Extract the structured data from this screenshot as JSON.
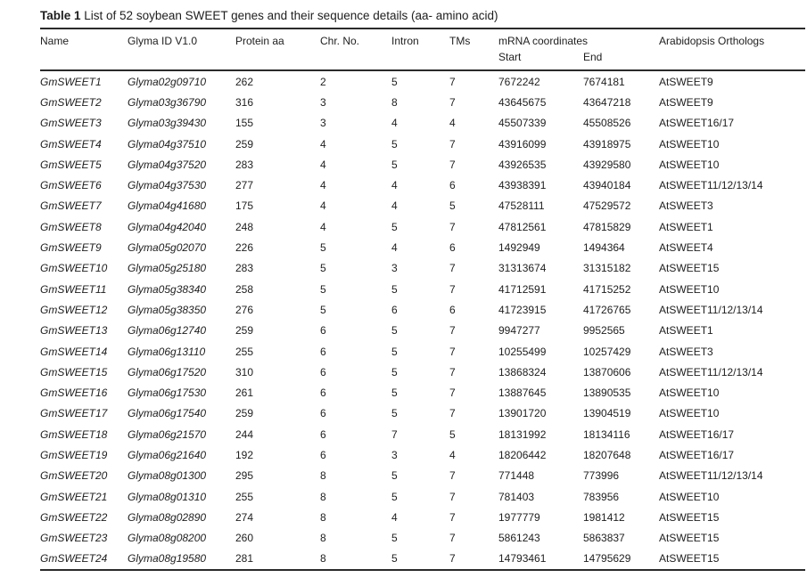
{
  "table": {
    "title_label": "Table 1",
    "title_text": " List of 52 soybean SWEET genes and their sequence details (aa- amino acid)",
    "headers": {
      "name": "Name",
      "glyma_id": "Glyma ID V1.0",
      "protein_aa": "Protein aa",
      "chr_no": "Chr. No.",
      "intron": "Intron",
      "tms": "TMs",
      "mrna": "mRNA coordinates",
      "start": "Start",
      "end": "End",
      "orthologs": "Arabidopsis Orthologs"
    },
    "column_keys": [
      "name",
      "glyma_id",
      "protein_aa",
      "chr_no",
      "intron",
      "tms",
      "start",
      "end",
      "orthologs"
    ],
    "rows": [
      [
        "GmSWEET1",
        "Glyma02g09710",
        "262",
        "2",
        "5",
        "7",
        "7672242",
        "7674181",
        "AtSWEET9"
      ],
      [
        "GmSWEET2",
        "Glyma03g36790",
        "316",
        "3",
        "8",
        "7",
        "43645675",
        "43647218",
        "AtSWEET9"
      ],
      [
        "GmSWEET3",
        "Glyma03g39430",
        "155",
        "3",
        "4",
        "4",
        "45507339",
        "45508526",
        "AtSWEET16/17"
      ],
      [
        "GmSWEET4",
        "Glyma04g37510",
        "259",
        "4",
        "5",
        "7",
        "43916099",
        "43918975",
        "AtSWEET10"
      ],
      [
        "GmSWEET5",
        "Glyma04g37520",
        "283",
        "4",
        "5",
        "7",
        "43926535",
        "43929580",
        "AtSWEET10"
      ],
      [
        "GmSWEET6",
        "Glyma04g37530",
        "277",
        "4",
        "4",
        "6",
        "43938391",
        "43940184",
        "AtSWEET11/12/13/14"
      ],
      [
        "GmSWEET7",
        "Glyma04g41680",
        "175",
        "4",
        "4",
        "5",
        "47528111",
        "47529572",
        "AtSWEET3"
      ],
      [
        "GmSWEET8",
        "Glyma04g42040",
        "248",
        "4",
        "5",
        "7",
        "47812561",
        "47815829",
        "AtSWEET1"
      ],
      [
        "GmSWEET9",
        "Glyma05g02070",
        "226",
        "5",
        "4",
        "6",
        "1492949",
        "1494364",
        "AtSWEET4"
      ],
      [
        "GmSWEET10",
        "Glyma05g25180",
        "283",
        "5",
        "3",
        "7",
        "31313674",
        "31315182",
        "AtSWEET15"
      ],
      [
        "GmSWEET11",
        "Glyma05g38340",
        "258",
        "5",
        "5",
        "7",
        "41712591",
        "41715252",
        "AtSWEET10"
      ],
      [
        "GmSWEET12",
        "Glyma05g38350",
        "276",
        "5",
        "6",
        "6",
        "41723915",
        "41726765",
        "AtSWEET11/12/13/14"
      ],
      [
        "GmSWEET13",
        "Glyma06g12740",
        "259",
        "6",
        "5",
        "7",
        "9947277",
        "9952565",
        "AtSWEET1"
      ],
      [
        "GmSWEET14",
        "Glyma06g13110",
        "255",
        "6",
        "5",
        "7",
        "10255499",
        "10257429",
        "AtSWEET3"
      ],
      [
        "GmSWEET15",
        "Glyma06g17520",
        "310",
        "6",
        "5",
        "7",
        "13868324",
        "13870606",
        "AtSWEET11/12/13/14"
      ],
      [
        "GmSWEET16",
        "Glyma06g17530",
        "261",
        "6",
        "5",
        "7",
        "13887645",
        "13890535",
        "AtSWEET10"
      ],
      [
        "GmSWEET17",
        "Glyma06g17540",
        "259",
        "6",
        "5",
        "7",
        "13901720",
        "13904519",
        "AtSWEET10"
      ],
      [
        "GmSWEET18",
        "Glyma06g21570",
        "244",
        "6",
        "7",
        "5",
        "18131992",
        "18134116",
        "AtSWEET16/17"
      ],
      [
        "GmSWEET19",
        "Glyma06g21640",
        "192",
        "6",
        "3",
        "4",
        "18206442",
        "18207648",
        "AtSWEET16/17"
      ],
      [
        "GmSWEET20",
        "Glyma08g01300",
        "295",
        "8",
        "5",
        "7",
        "771448",
        "773996",
        "AtSWEET11/12/13/14"
      ],
      [
        "GmSWEET21",
        "Glyma08g01310",
        "255",
        "8",
        "5",
        "7",
        "781403",
        "783956",
        "AtSWEET10"
      ],
      [
        "GmSWEET22",
        "Glyma08g02890",
        "274",
        "8",
        "4",
        "7",
        "1977779",
        "1981412",
        "AtSWEET15"
      ],
      [
        "GmSWEET23",
        "Glyma08g08200",
        "260",
        "8",
        "5",
        "7",
        "5861243",
        "5863837",
        "AtSWEET15"
      ],
      [
        "GmSWEET24",
        "Glyma08g19580",
        "281",
        "8",
        "5",
        "7",
        "14793461",
        "14795629",
        "AtSWEET15"
      ]
    ]
  }
}
